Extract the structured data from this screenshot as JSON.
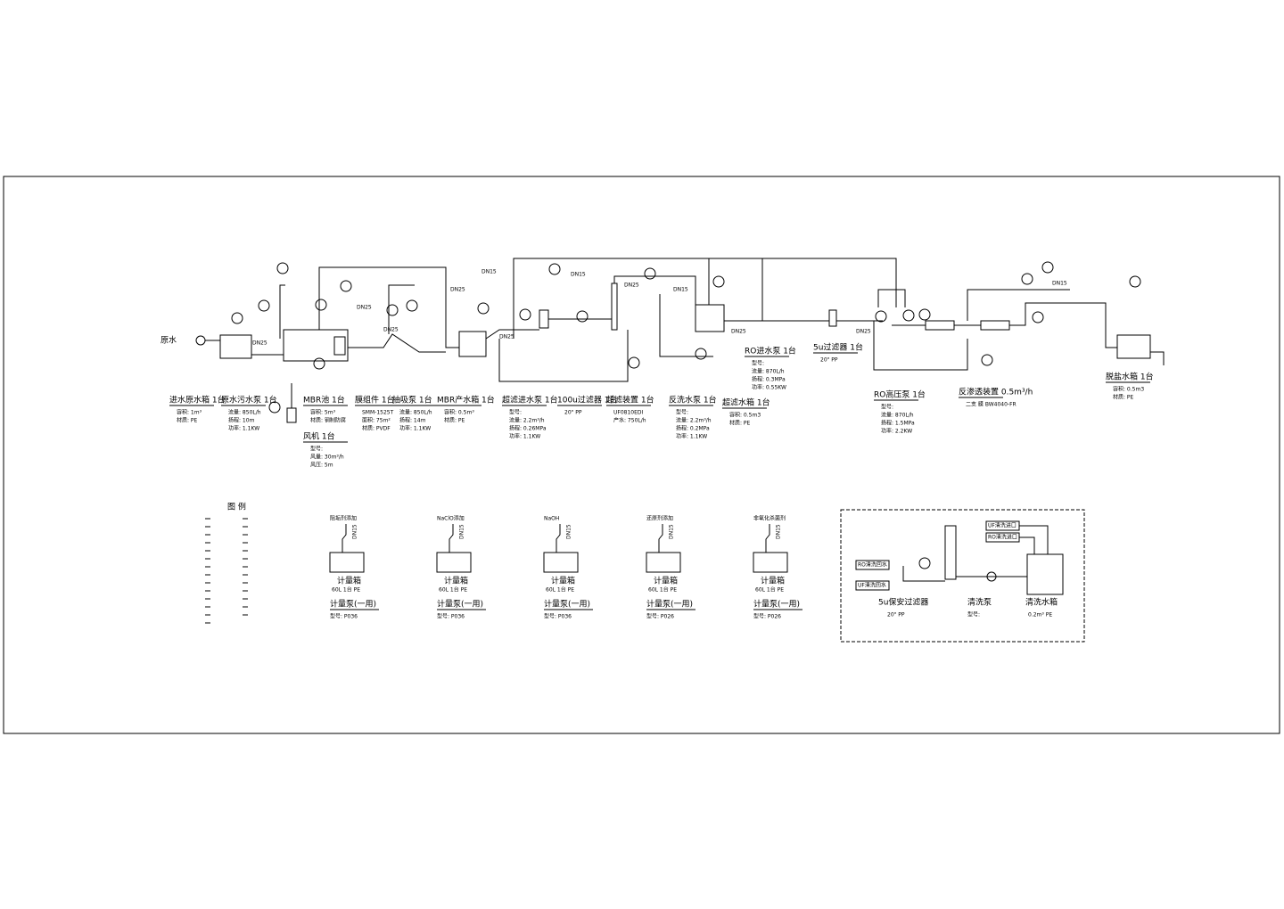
{
  "source_label": "原水",
  "equipment": [
    {
      "name": "进水原水箱 1台",
      "specs": [
        "容积: 1m³",
        "材质: PE"
      ]
    },
    {
      "name": "原水污水泵 1台",
      "specs": [
        "流量: 850L/h",
        "扬程: 10m",
        "功率: 1.1KW"
      ]
    },
    {
      "name": "MBR池 1台",
      "specs": [
        "容积: 5m³",
        "材质: 钢制防腐"
      ]
    },
    {
      "name": "膜组件 1台",
      "specs": [
        "SMM-1525T",
        "面积: 75m²",
        "材质: PVDF"
      ]
    },
    {
      "name": "抽吸泵 1台",
      "specs": [
        "流量: 850L/h",
        "扬程: 14m",
        "功率: 1.1KW"
      ]
    },
    {
      "name": "MBR产水箱 1台",
      "specs": [
        "容积: 0.5m³",
        "材质: PE"
      ]
    },
    {
      "name": "超滤进水泵 1台",
      "specs": [
        "型号:",
        "流量: 2.2m³/h",
        "扬程: 0.26MPa",
        "功率: 1.1KW"
      ]
    },
    {
      "name": "100u过滤器 1台",
      "specs": [
        "20\" PP"
      ]
    },
    {
      "name": "超滤装置 1台",
      "specs": [
        "UF0810EDI",
        "产水: 750L/h"
      ]
    },
    {
      "name": "反洗水泵 1台",
      "specs": [
        "型号:",
        "流量: 2.2m³/h",
        "扬程: 0.2MPa",
        "功率: 1.1KW"
      ]
    },
    {
      "name": "超滤水箱 1台",
      "specs": [
        "容积: 0.5m3",
        "材质: PE"
      ]
    },
    {
      "name": "RO进水泵 1台",
      "specs": [
        "型号:",
        "流量: 870L/h",
        "扬程: 0.3MPa",
        "功率: 0.55KW"
      ]
    },
    {
      "name": "5u过滤器 1台",
      "specs": [
        "20\" PP"
      ]
    },
    {
      "name": "RO高压泵 1台",
      "specs": [
        "型号:",
        "流量: 870L/h",
        "扬程: 1.5MPa",
        "功率: 2.2KW"
      ]
    },
    {
      "name": "反渗透装置 0.5m³/h",
      "specs": [
        "二支 膜 BW4040-FR"
      ]
    },
    {
      "name": "脱盐水箱 1台",
      "specs": [
        "容积: 0.5m3",
        "材质: PE"
      ]
    },
    {
      "name": "风机 1台",
      "specs": [
        "型号:",
        "风量: 30m³/h",
        "风压: 5m"
      ]
    }
  ],
  "legend": {
    "title": "图 例"
  },
  "dosing": [
    {
      "chemical": "阻垢剂添加",
      "pipe": "DN15",
      "tank": "计量箱",
      "tank_spec": "60L 1台 PE",
      "pump": "计量泵(一用)",
      "model": "型号: P036"
    },
    {
      "chemical": "NaClO添加",
      "pipe": "DN15",
      "tank": "计量箱",
      "tank_spec": "60L 1台 PE",
      "pump": "计量泵(一用)",
      "model": "型号: P036"
    },
    {
      "chemical": "NaOH",
      "pipe": "DN15",
      "tank": "计量箱",
      "tank_spec": "60L 1台 PE",
      "pump": "计量泵(一用)",
      "model": "型号: P036"
    },
    {
      "chemical": "还原剂添加",
      "pipe": "DN15",
      "tank": "计量箱",
      "tank_spec": "60L 1台 PE",
      "pump": "计量泵(一用)",
      "model": "型号: P026"
    },
    {
      "chemical": "非氧化杀菌剂",
      "pipe": "DN15",
      "tank": "计量箱",
      "tank_spec": "60L 1台 PE",
      "pump": "计量泵(一用)",
      "model": "型号: P026"
    }
  ],
  "cleaning": {
    "filter": "5u保安过滤器",
    "filter_spec": "20\" PP",
    "pump": "清洗泵",
    "pump_model": "型号:",
    "tank": "清洗水箱",
    "tank_spec": "0.2m³ PE",
    "ports": [
      "RO清洗回水",
      "UF清洗回水",
      "UF清洗进口",
      "RO清洗进口"
    ]
  },
  "pipe_labels": [
    "DN25",
    "DN25",
    "DN25",
    "DN25",
    "DN15",
    "DN25",
    "DN15",
    "DN25",
    "DN15",
    "DN25",
    "DN25",
    "DN15"
  ]
}
